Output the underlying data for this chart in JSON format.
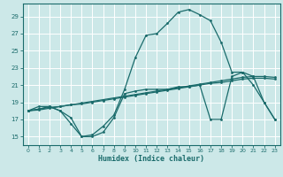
{
  "title": "",
  "xlabel": "Humidex (Indice chaleur)",
  "ylabel": "",
  "bg_color": "#cce8e8",
  "grid_color": "#ffffff",
  "line_color": "#1a6b6b",
  "xlim": [
    -0.5,
    23.5
  ],
  "ylim": [
    14.0,
    30.5
  ],
  "yticks": [
    15,
    17,
    19,
    21,
    23,
    25,
    27,
    29
  ],
  "xticks": [
    0,
    1,
    2,
    3,
    4,
    5,
    6,
    7,
    8,
    9,
    10,
    11,
    12,
    13,
    14,
    15,
    16,
    17,
    18,
    19,
    20,
    21,
    22,
    23
  ],
  "series_main_x": [
    0,
    1,
    2,
    3,
    4,
    5,
    6,
    7,
    8,
    9,
    10,
    11,
    12,
    13,
    14,
    15,
    16,
    17,
    18,
    19,
    20,
    21,
    22,
    23
  ],
  "series_main_y": [
    18.0,
    18.2,
    18.5,
    18.0,
    16.5,
    15.0,
    15.2,
    16.2,
    17.5,
    20.5,
    24.2,
    26.8,
    27.0,
    28.2,
    29.5,
    29.8,
    29.2,
    28.5,
    26.0,
    22.5,
    22.5,
    22.0,
    19.0,
    17.0
  ],
  "series_wavy_x": [
    0,
    1,
    2,
    3,
    4,
    5,
    6,
    7,
    8,
    9,
    10,
    11,
    12,
    13,
    14,
    15,
    16,
    17,
    18,
    19,
    20,
    21,
    22,
    23
  ],
  "series_wavy_y": [
    18.0,
    18.5,
    18.5,
    18.0,
    17.2,
    15.0,
    15.0,
    15.5,
    17.2,
    20.0,
    20.3,
    20.5,
    20.5,
    20.5,
    20.8,
    20.8,
    21.0,
    17.0,
    17.0,
    22.0,
    22.5,
    21.0,
    19.0,
    17.0
  ],
  "series_line1_x": [
    0,
    1,
    2,
    3,
    4,
    5,
    6,
    7,
    8,
    9,
    10,
    11,
    12,
    13,
    14,
    15,
    16,
    17,
    18,
    19,
    20,
    21,
    22,
    23
  ],
  "series_line1_y": [
    18.0,
    18.2,
    18.4,
    18.5,
    18.7,
    18.8,
    19.0,
    19.2,
    19.4,
    19.6,
    19.8,
    20.0,
    20.2,
    20.4,
    20.6,
    20.8,
    21.0,
    21.2,
    21.3,
    21.5,
    21.7,
    21.8,
    21.8,
    21.7
  ],
  "series_line2_x": [
    0,
    1,
    2,
    3,
    4,
    5,
    6,
    7,
    8,
    9,
    10,
    11,
    12,
    13,
    14,
    15,
    16,
    17,
    18,
    19,
    20,
    21,
    22,
    23
  ],
  "series_line2_y": [
    18.0,
    18.1,
    18.3,
    18.5,
    18.7,
    18.9,
    19.1,
    19.3,
    19.5,
    19.7,
    19.9,
    20.1,
    20.3,
    20.5,
    20.7,
    20.9,
    21.1,
    21.3,
    21.5,
    21.7,
    21.9,
    22.0,
    22.0,
    21.9
  ]
}
